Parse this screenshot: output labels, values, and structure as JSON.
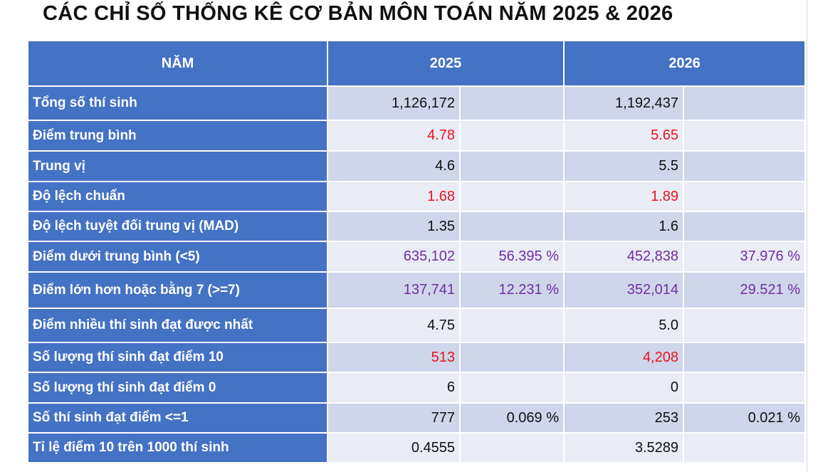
{
  "title": "CÁC CHỈ SỐ THỐNG KÊ CƠ BẢN MÔN TOÁN NĂM 2025 & 2026",
  "header": {
    "col_label": "NĂM",
    "year_a": "2025",
    "year_b": "2026"
  },
  "rows": [
    {
      "label": "Tổng số thí sinh",
      "a": "1,126,172",
      "a_pct": "",
      "b": "1,192,437",
      "b_pct": ""
    },
    {
      "label": "Điểm trung bình",
      "a": "4.78",
      "a_pct": "",
      "b": "5.65",
      "b_pct": ""
    },
    {
      "label": "Trung vị",
      "a": "4.6",
      "a_pct": "",
      "b": "5.5",
      "b_pct": ""
    },
    {
      "label": "Độ lệch chuẩn",
      "a": "1.68",
      "a_pct": "",
      "b": "1.89",
      "b_pct": ""
    },
    {
      "label": "Độ lệch tuyệt đối trung vị (MAD)",
      "a": "1.35",
      "a_pct": "",
      "b": "1.6",
      "b_pct": ""
    },
    {
      "label": "Điểm dưới trung bình (<5)",
      "a": "635,102",
      "a_pct": "56.395 %",
      "b": "452,838",
      "b_pct": "37.976 %"
    },
    {
      "label": "Điểm lớn hơn hoặc bằng 7 (>=7)",
      "a": "137,741",
      "a_pct": "12.231 %",
      "b": "352,014",
      "b_pct": "29.521 %"
    },
    {
      "label": "Điểm nhiều thí sinh đạt được nhất",
      "a": "4.75",
      "a_pct": "",
      "b": "5.0",
      "b_pct": ""
    },
    {
      "label": "Số lượng thí sinh đạt điểm 10",
      "a": "513",
      "a_pct": "",
      "b": "4,208",
      "b_pct": ""
    },
    {
      "label": "Số lượng thí sinh đạt điểm 0",
      "a": "6",
      "a_pct": "",
      "b": "0",
      "b_pct": ""
    },
    {
      "label": "Số thí sinh đạt điểm <=1",
      "a": "777",
      "a_pct": "0.069 %",
      "b": "253",
      "b_pct": "0.021 %"
    },
    {
      "label": "Tỉ lệ điểm 10 trên 1000 thí sinh",
      "a": "0.4555",
      "a_pct": "",
      "b": "3.5289",
      "b_pct": ""
    }
  ],
  "colors": {
    "header_blue": "#4472c4",
    "row_dark": "#cfd5ea",
    "row_light": "#e9ebf5",
    "highlight_red": "#e8141e",
    "highlight_purple": "#7030a0"
  }
}
